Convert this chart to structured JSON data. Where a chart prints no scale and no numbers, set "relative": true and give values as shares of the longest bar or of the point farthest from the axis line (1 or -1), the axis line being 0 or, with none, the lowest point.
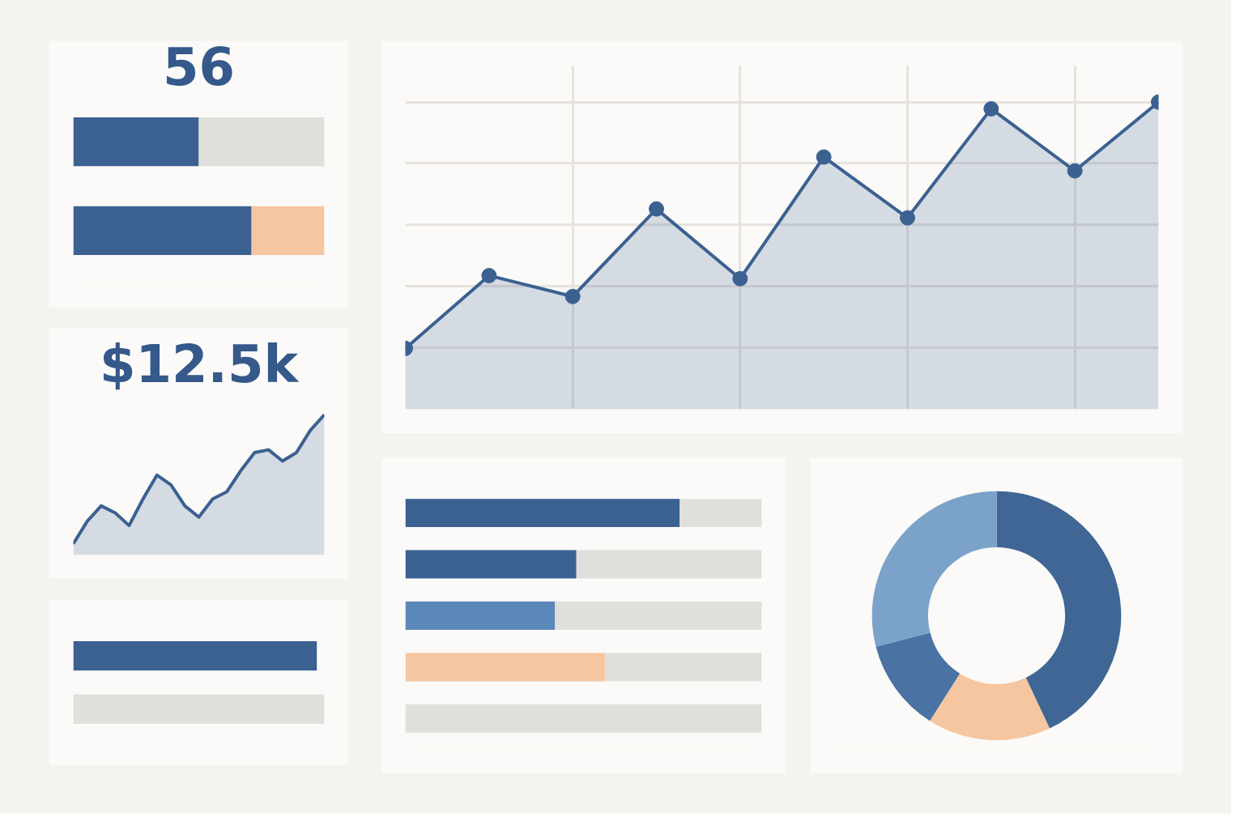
{
  "chart_data": [
    {
      "type": "bar",
      "orientation": "horizontal",
      "stacked": true,
      "relative": true,
      "title": "56",
      "categories": [
        null,
        null
      ],
      "series": [
        {
          "color": "#3b6191",
          "values": [
            0.5,
            0.71
          ]
        },
        {
          "color": "#f5c6a0",
          "values": [
            0,
            0.29
          ]
        },
        {
          "color": "#e0dfdb",
          "values": [
            0.5,
            0
          ]
        }
      ]
    },
    {
      "type": "area",
      "relative": true,
      "title": "$12.5k",
      "marker": "none",
      "categories": [
        null,
        null,
        null,
        null,
        null,
        null,
        null,
        null,
        null,
        null,
        null,
        null,
        null,
        null,
        null,
        null,
        null,
        null,
        null
      ],
      "series": [
        {
          "color": "#3b6191",
          "values": [
            0.08,
            0.24,
            0.35,
            0.3,
            0.21,
            0.4,
            0.57,
            0.5,
            0.35,
            0.27,
            0.4,
            0.45,
            0.6,
            0.73,
            0.75,
            0.67,
            0.73,
            0.89,
            1
          ]
        }
      ]
    },
    {
      "type": "bar",
      "orientation": "horizontal",
      "relative": true,
      "categories": [
        null,
        null
      ],
      "colors": [
        "#3b6191",
        "#e0dfdb"
      ],
      "values": [
        0.97,
        1
      ]
    },
    {
      "type": "area",
      "relative": true,
      "grid": true,
      "marker": "circle",
      "categories": [
        null,
        null,
        null,
        null,
        null,
        null,
        null,
        null,
        null,
        null
      ],
      "series": [
        {
          "color": "#3b6191",
          "values": [
            0.198,
            0.435,
            0.367,
            0.652,
            0.425,
            0.821,
            0.623,
            0.978,
            0.776,
            1
          ]
        }
      ]
    },
    {
      "type": "bar",
      "orientation": "horizontal",
      "stacked": true,
      "relative": true,
      "categories": [
        null,
        null,
        null,
        null,
        null
      ],
      "series": [
        {
          "colors": [
            "#3b6191",
            "#3b6191",
            "#5b88b8",
            "#f5c6a0",
            "#3b6191"
          ],
          "values": [
            0.77,
            0.48,
            0.42,
            0.56,
            0
          ]
        },
        {
          "color": "#e0dfdb",
          "values": [
            0.23,
            0.52,
            0.58,
            0.44,
            1
          ]
        }
      ]
    },
    {
      "type": "donut",
      "categories": [
        null,
        null,
        null,
        null
      ],
      "values": [
        43,
        16,
        12,
        29
      ],
      "colors": [
        "#3f6694",
        "#f5c6a0",
        "#4a72a3",
        "#7ba2c9"
      ]
    }
  ]
}
